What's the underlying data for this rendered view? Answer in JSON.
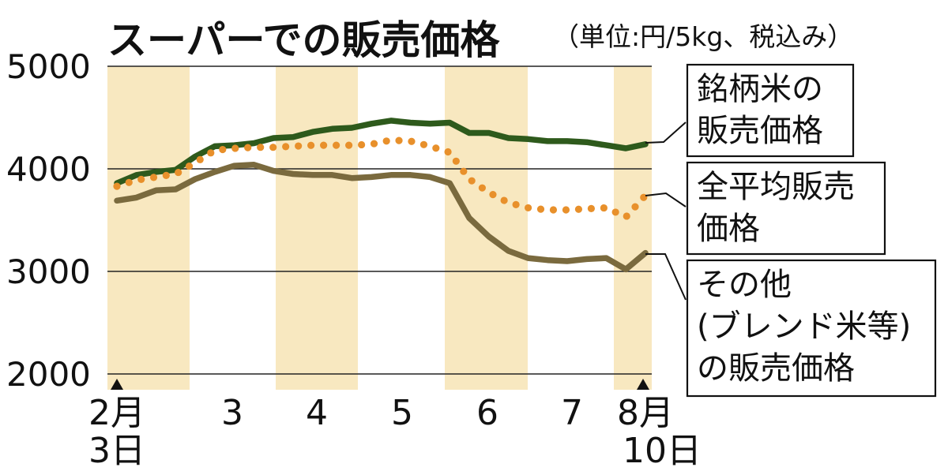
{
  "chart_data": {
    "type": "line",
    "title": "スーパーでの販売価格",
    "subtitle": "（単位:円/5kg、税込み）",
    "ylim": [
      2000,
      5000
    ],
    "yticks": [
      "5000",
      "4000",
      "3000",
      "2000"
    ],
    "month_labels": [
      "2月",
      "3",
      "4",
      "5",
      "6",
      "7",
      "8月"
    ],
    "start_day_label": "3日",
    "end_day_label": "10日",
    "grid": true,
    "week_count": 28,
    "series": [
      {
        "name": "銘柄米の販売価格",
        "label_lines": [
          "銘柄米の",
          "販売価格"
        ],
        "color": "#2e5a1c",
        "style": "solid",
        "values": [
          3860,
          3940,
          3970,
          3990,
          4120,
          4220,
          4230,
          4250,
          4300,
          4310,
          4360,
          4390,
          4400,
          4440,
          4470,
          4450,
          4440,
          4450,
          4350,
          4350,
          4300,
          4290,
          4270,
          4270,
          4260,
          4230,
          4200,
          4240
        ]
      },
      {
        "name": "全平均販売価格",
        "label_lines": [
          "全平均販売",
          "価格"
        ],
        "color": "#e8902b",
        "style": "dotted",
        "values": [
          3830,
          3890,
          3920,
          3950,
          4060,
          4180,
          4200,
          4210,
          4210,
          4220,
          4230,
          4230,
          4230,
          4240,
          4280,
          4270,
          4220,
          4160,
          3900,
          3770,
          3670,
          3620,
          3600,
          3600,
          3610,
          3620,
          3530,
          3740
        ]
      },
      {
        "name": "その他（ブレンド米等）の販売価格",
        "label_lines": [
          "その他",
          "(ブレンド米等)",
          "の販売価格"
        ],
        "color": "#7a6a3e",
        "style": "solid",
        "values": [
          3690,
          3720,
          3790,
          3800,
          3900,
          3970,
          4030,
          4040,
          3980,
          3950,
          3940,
          3940,
          3910,
          3920,
          3940,
          3940,
          3920,
          3860,
          3520,
          3340,
          3200,
          3130,
          3110,
          3100,
          3120,
          3130,
          3020,
          3180
        ]
      }
    ]
  },
  "colors": {
    "band": "#f8e8c0",
    "grid": "#222222",
    "text": "#111111"
  }
}
